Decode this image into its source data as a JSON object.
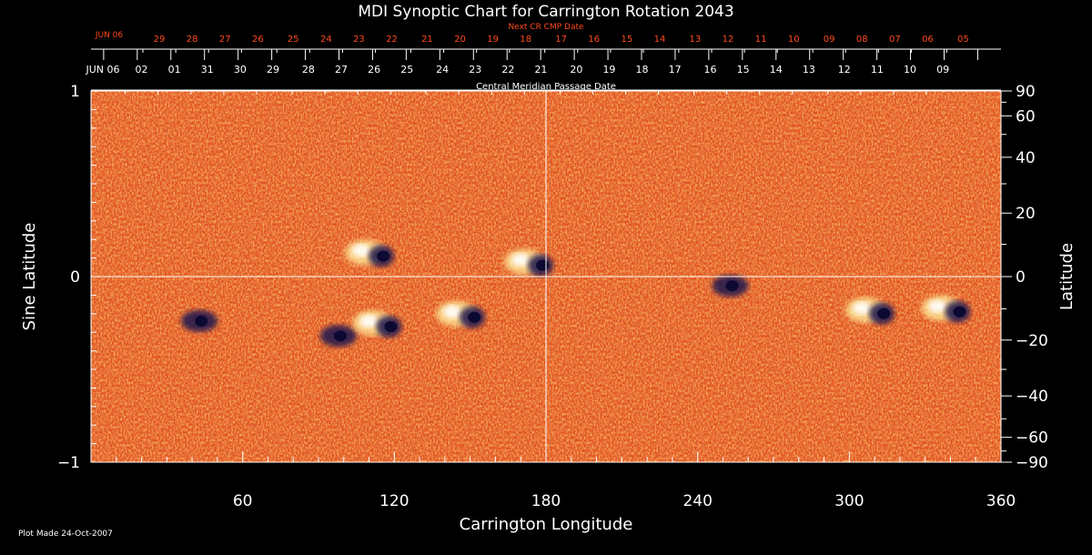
{
  "chart_data": {
    "type": "heatmap",
    "title": "MDI Synoptic Chart for Carrington Rotation 2043",
    "xlabel": "Carrington Longitude",
    "ylabel_left": "Sine Latitude",
    "ylabel_right": "Latitude",
    "xlim": [
      0,
      360
    ],
    "ylim_sine": [
      -1,
      1
    ],
    "x_ticks": [
      60,
      120,
      180,
      240,
      300,
      360
    ],
    "y_left_ticks": [
      {
        "value": 1,
        "label": "1"
      },
      {
        "value": 0,
        "label": "0"
      },
      {
        "value": -1,
        "label": "−1"
      }
    ],
    "y_right_ticks": [
      {
        "lat": 90,
        "label": "90"
      },
      {
        "lat": 60,
        "label": "60"
      },
      {
        "lat": 40,
        "label": "40"
      },
      {
        "lat": 20,
        "label": "20"
      },
      {
        "lat": 0,
        "label": "0"
      },
      {
        "lat": -20,
        "label": "−20"
      },
      {
        "lat": -40,
        "label": "−40"
      },
      {
        "lat": -60,
        "label": "−60"
      },
      {
        "lat": -90,
        "label": "−90"
      }
    ],
    "cmp_axis": {
      "label": "Central Meridian Passage Date",
      "start_label": "JUN 06",
      "dates": [
        {
          "lon": 20,
          "label": "02"
        },
        {
          "lon": 33,
          "label": "01"
        },
        {
          "lon": 46,
          "label": "31"
        },
        {
          "lon": 59,
          "label": "30"
        },
        {
          "lon": 72,
          "label": "29"
        },
        {
          "lon": 86,
          "label": "28"
        },
        {
          "lon": 99,
          "label": "27"
        },
        {
          "lon": 112,
          "label": "26"
        },
        {
          "lon": 125,
          "label": "25"
        },
        {
          "lon": 139,
          "label": "24"
        },
        {
          "lon": 152,
          "label": "23"
        },
        {
          "lon": 165,
          "label": "22"
        },
        {
          "lon": 178,
          "label": "21"
        },
        {
          "lon": 192,
          "label": "20"
        },
        {
          "lon": 205,
          "label": "19"
        },
        {
          "lon": 218,
          "label": "18"
        },
        {
          "lon": 231,
          "label": "17"
        },
        {
          "lon": 245,
          "label": "16"
        },
        {
          "lon": 258,
          "label": "15"
        },
        {
          "lon": 271,
          "label": "14"
        },
        {
          "lon": 284,
          "label": "13"
        },
        {
          "lon": 298,
          "label": "12"
        },
        {
          "lon": 311,
          "label": "11"
        },
        {
          "lon": 324,
          "label": "10"
        },
        {
          "lon": 337,
          "label": "09"
        }
      ]
    },
    "next_cmp_axis": {
      "label": "Next CR CMP Date",
      "start_label": "JUN 06",
      "dates": [
        {
          "lon": 27,
          "label": "29"
        },
        {
          "lon": 40,
          "label": "28"
        },
        {
          "lon": 53,
          "label": "27"
        },
        {
          "lon": 66,
          "label": "26"
        },
        {
          "lon": 80,
          "label": "25"
        },
        {
          "lon": 93,
          "label": "24"
        },
        {
          "lon": 106,
          "label": "23"
        },
        {
          "lon": 119,
          "label": "22"
        },
        {
          "lon": 133,
          "label": "21"
        },
        {
          "lon": 146,
          "label": "20"
        },
        {
          "lon": 159,
          "label": "19"
        },
        {
          "lon": 172,
          "label": "18"
        },
        {
          "lon": 186,
          "label": "17"
        },
        {
          "lon": 199,
          "label": "16"
        },
        {
          "lon": 212,
          "label": "15"
        },
        {
          "lon": 225,
          "label": "14"
        },
        {
          "lon": 239,
          "label": "13"
        },
        {
          "lon": 252,
          "label": "12"
        },
        {
          "lon": 265,
          "label": "11"
        },
        {
          "lon": 278,
          "label": "10"
        },
        {
          "lon": 292,
          "label": "09"
        },
        {
          "lon": 305,
          "label": "08"
        },
        {
          "lon": 318,
          "label": "07"
        },
        {
          "lon": 331,
          "label": "06"
        },
        {
          "lon": 345,
          "label": "05"
        }
      ]
    },
    "active_regions": [
      {
        "lon": 112,
        "sinlat": 0.13,
        "polarity": "mixed"
      },
      {
        "lon": 175,
        "sinlat": 0.08,
        "polarity": "mixed"
      },
      {
        "lon": 40,
        "sinlat": -0.22,
        "polarity": "negative"
      },
      {
        "lon": 95,
        "sinlat": -0.3,
        "polarity": "negative"
      },
      {
        "lon": 115,
        "sinlat": -0.25,
        "polarity": "mixed"
      },
      {
        "lon": 148,
        "sinlat": -0.2,
        "polarity": "mixed"
      },
      {
        "lon": 310,
        "sinlat": -0.18,
        "polarity": "mixed"
      },
      {
        "lon": 340,
        "sinlat": -0.17,
        "polarity": "mixed"
      },
      {
        "lon": 250,
        "sinlat": -0.03,
        "polarity": "negative"
      }
    ],
    "grid": "equator and 180° meridian",
    "colors": {
      "background_field": "#e8561f",
      "positive": "#fff0a0",
      "negative": "#1a1450",
      "axis_red": "#ff4a1c"
    }
  },
  "footer": {
    "plot_made": "Plot Made 24-Oct-2007"
  }
}
